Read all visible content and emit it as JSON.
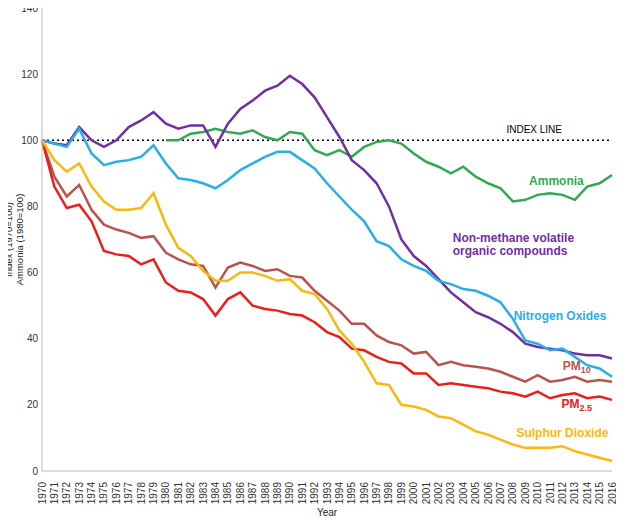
{
  "chart_data": {
    "type": "line",
    "x_label": "Year",
    "y_label": "Index (1970=100)\nAmmonia (1980=100)",
    "categories": [
      "1970",
      "1971",
      "1972",
      "1973",
      "1974",
      "1975",
      "1976",
      "1977",
      "1978",
      "1979",
      "1980",
      "1981",
      "1982",
      "1983",
      "1984",
      "1985",
      "1986",
      "1987",
      "1988",
      "1989",
      "1990",
      "1991",
      "1992",
      "1993",
      "1994",
      "1995",
      "1996",
      "1997",
      "1998",
      "1999",
      "2000",
      "2001",
      "2002",
      "2003",
      "2004",
      "2005",
      "2006",
      "2007",
      "2008",
      "2009",
      "2010",
      "2011",
      "2012",
      "2013",
      "2014",
      "2015",
      "2016"
    ],
    "series": [
      {
        "name": "Ammonia",
        "color": "#33a852",
        "values": [
          null,
          null,
          null,
          null,
          null,
          null,
          null,
          null,
          null,
          null,
          100,
          100,
          102,
          102.5,
          103.5,
          102.5,
          102,
          103,
          101,
          100,
          102.5,
          102,
          97,
          95.5,
          97,
          95,
          98,
          99.5,
          100,
          99,
          96,
          93.5,
          92,
          90,
          92,
          89,
          87,
          85.5,
          81.5,
          82,
          83.5,
          84,
          83.5,
          82,
          86,
          87,
          89.5
        ]
      },
      {
        "name": "Non-methane volatile organic compounds",
        "color": "#7030a0",
        "values": [
          100,
          99,
          98.5,
          104,
          100,
          98,
          100,
          104,
          106,
          108.5,
          105,
          103.5,
          104.5,
          104.5,
          98,
          105,
          109.5,
          112,
          115,
          116.5,
          119.5,
          117,
          113,
          107,
          101,
          94,
          91,
          87,
          80,
          70,
          65,
          62,
          58,
          54,
          51,
          48,
          46.5,
          44.5,
          42,
          38.5,
          37.5,
          37,
          36.5,
          35.5,
          35,
          35,
          34
        ]
      },
      {
        "name": "Nitrogen Oxides",
        "color": "#29aee6",
        "values": [
          100,
          99,
          98,
          103.5,
          96,
          92.5,
          93.5,
          94,
          95,
          98.5,
          93,
          88.5,
          88,
          87,
          85.5,
          88,
          91,
          93,
          95,
          96.5,
          96.5,
          94,
          91.5,
          87,
          83,
          79,
          75.5,
          69.5,
          68,
          64,
          62,
          60.5,
          57.5,
          56.5,
          55,
          54.5,
          53,
          51,
          46,
          39.5,
          38.5,
          36.5,
          37,
          34.5,
          32,
          31,
          28.5
        ]
      },
      {
        "name": "PM10",
        "color": "#b85450",
        "values": [
          100,
          89,
          83,
          86.5,
          79,
          74.5,
          73,
          72,
          70.5,
          71,
          66,
          64,
          62.5,
          62,
          55.5,
          61.5,
          63,
          62,
          60.5,
          61,
          59,
          58.5,
          54.5,
          51.5,
          48.5,
          44.5,
          44.5,
          41,
          39,
          38,
          35.5,
          36,
          32,
          33,
          32,
          31.5,
          31,
          30,
          28.5,
          27,
          29,
          27,
          27.5,
          28.5,
          27,
          27.5,
          27
        ]
      },
      {
        "name": "PM2.5",
        "color": "#e8201a",
        "values": [
          100,
          86,
          79.5,
          80.5,
          75.5,
          66.5,
          65.5,
          65,
          62.5,
          64,
          57,
          54.5,
          54,
          52,
          47,
          52,
          54,
          50,
          49,
          48.5,
          47.5,
          47,
          45,
          42,
          40.5,
          37,
          36.5,
          34.5,
          33,
          32.5,
          29.5,
          29.5,
          26,
          26.5,
          26,
          25.5,
          25,
          24,
          23.5,
          22.5,
          24,
          22,
          23,
          23.5,
          22,
          22.5,
          21.5
        ]
      },
      {
        "name": "Sulphur Dioxide",
        "color": "#f8b80e",
        "values": [
          100,
          94,
          90.5,
          93,
          86,
          81.5,
          79,
          79,
          79.5,
          84,
          74.5,
          67.5,
          65,
          60.5,
          57.5,
          57.5,
          60,
          60,
          59,
          57.5,
          58,
          54.5,
          53.5,
          49,
          42.5,
          38.5,
          33,
          26.5,
          26,
          20,
          19.5,
          18.5,
          16.5,
          16,
          14,
          12,
          11,
          9.5,
          8,
          7,
          7,
          7,
          7.5,
          6,
          5,
          4,
          3
        ]
      }
    ],
    "annotations": [
      {
        "text": "INDEX LINE",
        "y": 100,
        "line_style": "dotted"
      }
    ],
    "ylim": [
      0,
      140
    ],
    "yticks": [
      0,
      20,
      40,
      60,
      80,
      100,
      120,
      140
    ],
    "grid": false
  }
}
